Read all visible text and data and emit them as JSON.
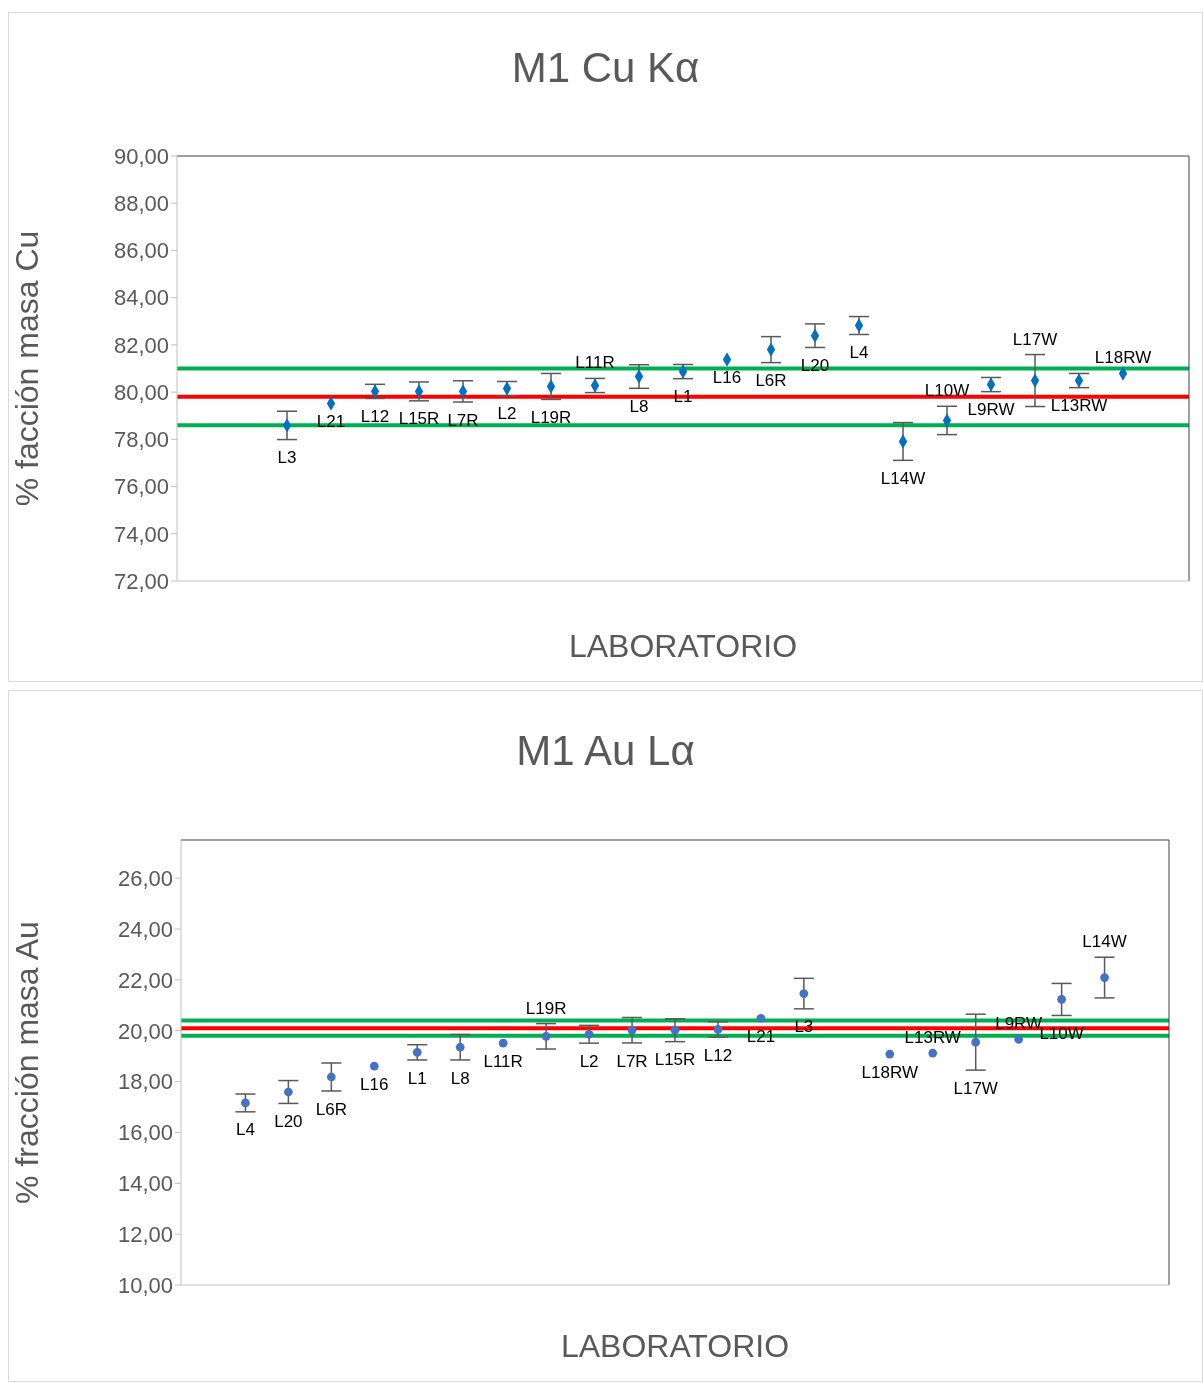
{
  "chart_data": [
    {
      "type": "scatter",
      "title": "M1 Cu Kα",
      "xlabel": "LABORATORIO",
      "ylabel": "% facción masa  Cu",
      "marker": "diamond",
      "tick_labels": "y",
      "categories": [
        null,
        null,
        null,
        null,
        null,
        null,
        null,
        null,
        null,
        null,
        null,
        null,
        null,
        null,
        null,
        null,
        null,
        null,
        null,
        null,
        null,
        null,
        null
      ],
      "series": [
        {
          "color": "#0070c0",
          "values": [
            null,
            null,
            78.59,
            79.52,
            80.03,
            80.03,
            80.03,
            80.15,
            80.24,
            80.28,
            80.66,
            80.87,
            81.38,
            81.8,
            82.39,
            82.82,
            77.91,
            78.8,
            80.32,
            80.49,
            80.49,
            80.79,
            null
          ],
          "errors": [
            null,
            null,
            0.6,
            null,
            0.3,
            0.4,
            0.45,
            0.3,
            0.55,
            0.3,
            0.5,
            0.3,
            null,
            0.55,
            0.5,
            0.38,
            0.8,
            0.6,
            0.3,
            1.1,
            0.3,
            null,
            null
          ],
          "value_labels": [
            null,
            null,
            "L3",
            "L21",
            "L12",
            "L15R",
            "L7R",
            "L2",
            "L19R",
            "L11R",
            "L8",
            "L1",
            "L16",
            "L6R",
            "L20",
            "L4",
            "L14W",
            "L10W",
            "L9RW",
            "L17W",
            "L13RW",
            "L18RW",
            null
          ]
        }
      ],
      "ylim": [
        72,
        90
      ],
      "yticks": [
        {
          "value": 72,
          "label": "72,00"
        },
        {
          "value": 74,
          "label": "74,00"
        },
        {
          "value": 76,
          "label": "76,00"
        },
        {
          "value": 78,
          "label": "78,00"
        },
        {
          "value": 80,
          "label": "80,00"
        },
        {
          "value": 82,
          "label": "82,00"
        },
        {
          "value": 84,
          "label": "84,00"
        },
        {
          "value": 86,
          "label": "86,00"
        },
        {
          "value": 88,
          "label": "88,00"
        },
        {
          "value": 90,
          "label": "90,00"
        }
      ],
      "ref_lines": [
        {
          "axis": "y",
          "value": 81.0,
          "color": "#00b050"
        },
        {
          "axis": "y",
          "value": 79.8,
          "color": "#ff0000"
        },
        {
          "axis": "y",
          "value": 78.6,
          "color": "#00b050"
        }
      ]
    },
    {
      "type": "scatter",
      "title": "M1 Au Lα",
      "xlabel": "LABORATORIO",
      "ylabel": "% fracción masa Au",
      "marker": "circle",
      "tick_labels": "y",
      "categories": [
        null,
        null,
        null,
        null,
        null,
        null,
        null,
        null,
        null,
        null,
        null,
        null,
        null,
        null,
        null,
        null,
        null,
        null,
        null,
        null,
        null,
        null,
        null
      ],
      "series": [
        {
          "color": "#4472c4",
          "values": [
            null,
            17.16,
            17.59,
            18.18,
            18.61,
            19.15,
            19.35,
            19.51,
            19.78,
            19.86,
            20.02,
            20.02,
            20.05,
            20.49,
            21.46,
            null,
            19.08,
            19.12,
            19.55,
            19.66,
            21.23,
            22.09,
            null
          ],
          "errors": [
            null,
            0.35,
            0.45,
            0.55,
            null,
            0.3,
            0.5,
            null,
            0.5,
            0.35,
            0.5,
            0.45,
            0.3,
            null,
            0.6,
            null,
            null,
            null,
            1.1,
            null,
            0.63,
            0.8,
            null
          ],
          "value_labels": [
            null,
            "L4",
            "L20",
            "L6R",
            "L16",
            "L1",
            "L8",
            "L11R",
            "L19R",
            "L2",
            "L7R",
            "L15R",
            "L12",
            "L21",
            "L3",
            null,
            "L18RW",
            "L13RW",
            "L17W",
            "L9RW",
            "L10W",
            "L14W",
            null
          ]
        }
      ],
      "ylim": [
        10,
        27.5
      ],
      "yticks": [
        {
          "value": 10,
          "label": "10,00"
        },
        {
          "value": 12,
          "label": "12,00"
        },
        {
          "value": 14,
          "label": "14,00"
        },
        {
          "value": 16,
          "label": "16,00"
        },
        {
          "value": 18,
          "label": "18,00"
        },
        {
          "value": 20,
          "label": "20,00"
        },
        {
          "value": 22,
          "label": "22,00"
        },
        {
          "value": 24,
          "label": "24,00"
        },
        {
          "value": 26,
          "label": "26,00"
        }
      ],
      "ref_lines": [
        {
          "axis": "y",
          "value": 20.4,
          "color": "#00b050"
        },
        {
          "axis": "y",
          "value": 20.1,
          "color": "#ff0000"
        },
        {
          "axis": "y",
          "value": 19.8,
          "color": "#00b050"
        }
      ]
    }
  ]
}
